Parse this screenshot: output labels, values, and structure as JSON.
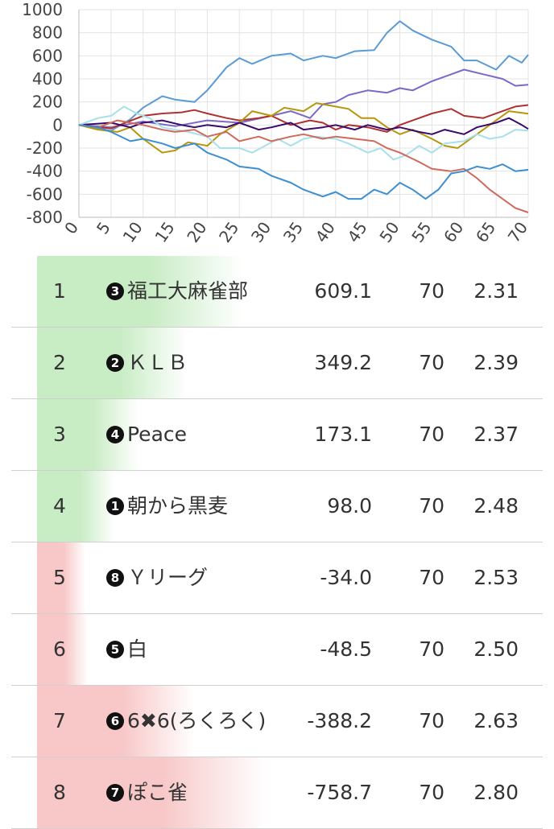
{
  "chart_data": {
    "type": "line",
    "title": "",
    "xlabel": "",
    "ylabel": "",
    "xlim": [
      0,
      70
    ],
    "ylim": [
      -800,
      1000
    ],
    "x_ticks": [
      "0",
      "5",
      "10",
      "15",
      "20",
      "25",
      "30",
      "35",
      "40",
      "45",
      "50",
      "55",
      "60",
      "65",
      "70"
    ],
    "y_ticks": [
      "1000",
      "800",
      "600",
      "400",
      "200",
      "0",
      "-200",
      "-400",
      "-600",
      "-800"
    ],
    "grid": true,
    "legend": "none",
    "series": [
      {
        "color": "#5b9bd5",
        "points": [
          [
            0,
            0
          ],
          [
            5,
            -50
          ],
          [
            8,
            50
          ],
          [
            10,
            150
          ],
          [
            13,
            250
          ],
          [
            15,
            220
          ],
          [
            18,
            200
          ],
          [
            20,
            300
          ],
          [
            23,
            500
          ],
          [
            25,
            580
          ],
          [
            27,
            530
          ],
          [
            30,
            600
          ],
          [
            33,
            620
          ],
          [
            35,
            560
          ],
          [
            38,
            600
          ],
          [
            40,
            580
          ],
          [
            43,
            640
          ],
          [
            46,
            650
          ],
          [
            48,
            800
          ],
          [
            50,
            900
          ],
          [
            52,
            820
          ],
          [
            55,
            740
          ],
          [
            58,
            680
          ],
          [
            60,
            560
          ],
          [
            62,
            560
          ],
          [
            65,
            480
          ],
          [
            67,
            600
          ],
          [
            69,
            540
          ],
          [
            70,
            609
          ]
        ]
      },
      {
        "color": "#7b68c8",
        "points": [
          [
            0,
            0
          ],
          [
            5,
            -20
          ],
          [
            10,
            30
          ],
          [
            15,
            -10
          ],
          [
            20,
            40
          ],
          [
            25,
            20
          ],
          [
            30,
            80
          ],
          [
            33,
            120
          ],
          [
            36,
            60
          ],
          [
            38,
            180
          ],
          [
            40,
            200
          ],
          [
            42,
            260
          ],
          [
            45,
            300
          ],
          [
            48,
            280
          ],
          [
            50,
            320
          ],
          [
            52,
            300
          ],
          [
            55,
            380
          ],
          [
            58,
            440
          ],
          [
            60,
            480
          ],
          [
            63,
            440
          ],
          [
            66,
            400
          ],
          [
            68,
            340
          ],
          [
            70,
            349
          ]
        ]
      },
      {
        "color": "#b03030",
        "points": [
          [
            0,
            0
          ],
          [
            5,
            -30
          ],
          [
            10,
            80
          ],
          [
            13,
            100
          ],
          [
            16,
            110
          ],
          [
            18,
            130
          ],
          [
            20,
            100
          ],
          [
            23,
            60
          ],
          [
            25,
            40
          ],
          [
            28,
            60
          ],
          [
            30,
            80
          ],
          [
            33,
            0
          ],
          [
            36,
            40
          ],
          [
            38,
            20
          ],
          [
            40,
            -40
          ],
          [
            42,
            0
          ],
          [
            45,
            -20
          ],
          [
            48,
            -60
          ],
          [
            50,
            0
          ],
          [
            52,
            40
          ],
          [
            55,
            100
          ],
          [
            58,
            140
          ],
          [
            60,
            80
          ],
          [
            63,
            60
          ],
          [
            66,
            120
          ],
          [
            68,
            160
          ],
          [
            70,
            173
          ]
        ]
      },
      {
        "color": "#b8960a",
        "points": [
          [
            0,
            0
          ],
          [
            3,
            -40
          ],
          [
            6,
            -60
          ],
          [
            8,
            -20
          ],
          [
            10,
            -120
          ],
          [
            13,
            -240
          ],
          [
            15,
            -220
          ],
          [
            17,
            -150
          ],
          [
            20,
            -180
          ],
          [
            22,
            -80
          ],
          [
            25,
            20
          ],
          [
            27,
            120
          ],
          [
            30,
            80
          ],
          [
            32,
            150
          ],
          [
            35,
            120
          ],
          [
            37,
            190
          ],
          [
            40,
            160
          ],
          [
            42,
            140
          ],
          [
            44,
            60
          ],
          [
            46,
            60
          ],
          [
            48,
            -20
          ],
          [
            50,
            -80
          ],
          [
            52,
            -40
          ],
          [
            55,
            -120
          ],
          [
            57,
            -180
          ],
          [
            59,
            -200
          ],
          [
            61,
            -120
          ],
          [
            63,
            -40
          ],
          [
            65,
            40
          ],
          [
            67,
            120
          ],
          [
            70,
            98
          ]
        ]
      },
      {
        "color": "#3a0a6a",
        "points": [
          [
            0,
            0
          ],
          [
            5,
            20
          ],
          [
            8,
            -20
          ],
          [
            10,
            20
          ],
          [
            13,
            40
          ],
          [
            16,
            0
          ],
          [
            18,
            -20
          ],
          [
            20,
            0
          ],
          [
            23,
            -20
          ],
          [
            25,
            20
          ],
          [
            28,
            -40
          ],
          [
            30,
            -20
          ],
          [
            33,
            20
          ],
          [
            35,
            -40
          ],
          [
            38,
            -20
          ],
          [
            40,
            0
          ],
          [
            43,
            -40
          ],
          [
            45,
            0
          ],
          [
            48,
            -40
          ],
          [
            50,
            -20
          ],
          [
            53,
            -60
          ],
          [
            55,
            -80
          ],
          [
            57,
            -40
          ],
          [
            60,
            -80
          ],
          [
            62,
            -20
          ],
          [
            65,
            20
          ],
          [
            67,
            60
          ],
          [
            69,
            0
          ],
          [
            70,
            -34
          ]
        ]
      },
      {
        "color": "#a8e0ea",
        "points": [
          [
            0,
            0
          ],
          [
            3,
            60
          ],
          [
            5,
            80
          ],
          [
            7,
            160
          ],
          [
            9,
            100
          ],
          [
            11,
            60
          ],
          [
            13,
            -20
          ],
          [
            15,
            -40
          ],
          [
            17,
            -60
          ],
          [
            20,
            -100
          ],
          [
            22,
            -200
          ],
          [
            25,
            -200
          ],
          [
            27,
            -240
          ],
          [
            29,
            -180
          ],
          [
            31,
            -120
          ],
          [
            33,
            -180
          ],
          [
            35,
            -120
          ],
          [
            37,
            -100
          ],
          [
            40,
            -120
          ],
          [
            42,
            -160
          ],
          [
            45,
            -240
          ],
          [
            47,
            -200
          ],
          [
            49,
            -300
          ],
          [
            51,
            -260
          ],
          [
            53,
            -180
          ],
          [
            55,
            -240
          ],
          [
            57,
            -160
          ],
          [
            60,
            -140
          ],
          [
            62,
            -80
          ],
          [
            64,
            -120
          ],
          [
            66,
            -100
          ],
          [
            68,
            -40
          ],
          [
            70,
            -48
          ]
        ]
      },
      {
        "color": "#d06a5c",
        "points": [
          [
            0,
            0
          ],
          [
            3,
            -20
          ],
          [
            6,
            40
          ],
          [
            8,
            20
          ],
          [
            10,
            0
          ],
          [
            13,
            -40
          ],
          [
            15,
            -60
          ],
          [
            18,
            -40
          ],
          [
            20,
            -100
          ],
          [
            23,
            -60
          ],
          [
            25,
            -140
          ],
          [
            28,
            -100
          ],
          [
            30,
            -140
          ],
          [
            33,
            -100
          ],
          [
            35,
            -80
          ],
          [
            38,
            -120
          ],
          [
            40,
            -100
          ],
          [
            43,
            -120
          ],
          [
            46,
            -140
          ],
          [
            48,
            -200
          ],
          [
            50,
            -240
          ],
          [
            53,
            -320
          ],
          [
            55,
            -380
          ],
          [
            58,
            -400
          ],
          [
            60,
            -380
          ],
          [
            62,
            -460
          ],
          [
            64,
            -560
          ],
          [
            66,
            -640
          ],
          [
            68,
            -720
          ],
          [
            70,
            -758
          ]
        ]
      },
      {
        "color": "#3c8fd0",
        "points": [
          [
            0,
            0
          ],
          [
            3,
            -20
          ],
          [
            5,
            -60
          ],
          [
            8,
            -140
          ],
          [
            10,
            -120
          ],
          [
            13,
            -160
          ],
          [
            15,
            -200
          ],
          [
            18,
            -160
          ],
          [
            20,
            -240
          ],
          [
            23,
            -300
          ],
          [
            25,
            -360
          ],
          [
            28,
            -380
          ],
          [
            30,
            -440
          ],
          [
            33,
            -500
          ],
          [
            35,
            -560
          ],
          [
            38,
            -620
          ],
          [
            40,
            -580
          ],
          [
            42,
            -640
          ],
          [
            44,
            -640
          ],
          [
            46,
            -560
          ],
          [
            48,
            -600
          ],
          [
            50,
            -500
          ],
          [
            52,
            -560
          ],
          [
            54,
            -640
          ],
          [
            56,
            -560
          ],
          [
            58,
            -420
          ],
          [
            60,
            -400
          ],
          [
            62,
            -360
          ],
          [
            64,
            -380
          ],
          [
            66,
            -340
          ],
          [
            68,
            -400
          ],
          [
            70,
            -388
          ]
        ]
      }
    ]
  },
  "table": {
    "rows": [
      {
        "rank": "1",
        "badge": "3",
        "team": "福工大麻雀部",
        "score": "609.1",
        "games": "70",
        "avg": "2.31",
        "bar_color": "#c8ecc4",
        "bar_fraction": 0.85
      },
      {
        "rank": "2",
        "badge": "2",
        "team": "ＫＬＢ",
        "score": "349.2",
        "games": "70",
        "avg": "2.39",
        "bar_color": "#c8ecc4",
        "bar_fraction": 0.62
      },
      {
        "rank": "3",
        "badge": "4",
        "team": "Peace",
        "score": "173.1",
        "games": "70",
        "avg": "2.37",
        "bar_color": "#c8ecc4",
        "bar_fraction": 0.42
      },
      {
        "rank": "4",
        "badge": "1",
        "team": "朝から黒麦",
        "score": "98.0",
        "games": "70",
        "avg": "2.48",
        "bar_color": "#c8ecc4",
        "bar_fraction": 0.32
      },
      {
        "rank": "5",
        "badge": "8",
        "team": "Ｙリーグ",
        "score": "-34.0",
        "games": "70",
        "avg": "2.53",
        "bar_color": "#f8c8c8",
        "bar_fraction": 0.2
      },
      {
        "rank": "6",
        "badge": "5",
        "team": "白",
        "score": "-48.5",
        "games": "70",
        "avg": "2.50",
        "bar_color": "#f8c8c8",
        "bar_fraction": 0.21
      },
      {
        "rank": "7",
        "badge": "6",
        "team": "6✖6(ろくろく)",
        "score": "-388.2",
        "games": "70",
        "avg": "2.63",
        "bar_color": "#f8c8c8",
        "bar_fraction": 0.65
      },
      {
        "rank": "8",
        "badge": "7",
        "team": "ぽこ雀",
        "score": "-758.7",
        "games": "70",
        "avg": "2.80",
        "bar_color": "#f8c8c8",
        "bar_fraction": 0.95
      }
    ]
  }
}
